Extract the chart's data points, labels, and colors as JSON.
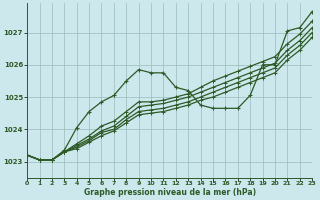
{
  "title": "Graphe pression niveau de la mer (hPa)",
  "bg_color": "#cce8ec",
  "line_color": "#2d5a27",
  "grid_color": "#99bbbb",
  "x_min": 0,
  "x_max": 23,
  "y_min": 1022.5,
  "y_max": 1027.9,
  "y_ticks": [
    1023,
    1024,
    1025,
    1026,
    1027
  ],
  "x_ticks": [
    0,
    1,
    2,
    3,
    4,
    5,
    6,
    7,
    8,
    9,
    10,
    11,
    12,
    13,
    14,
    15,
    16,
    17,
    18,
    19,
    20,
    21,
    22,
    23
  ],
  "series": [
    [
      1023.2,
      1023.05,
      1023.05,
      1023.35,
      1024.05,
      1024.55,
      1024.85,
      1025.05,
      1025.5,
      1025.85,
      1025.75,
      1025.75,
      1025.3,
      1025.2,
      1024.75,
      1024.65,
      1024.65,
      1024.65,
      1025.05,
      1026.0,
      1026.0,
      1027.05,
      1027.15,
      1027.65
    ],
    [
      1023.2,
      1023.05,
      1023.05,
      1023.3,
      1023.55,
      1023.8,
      1024.1,
      1024.25,
      1024.55,
      1024.85,
      1024.85,
      1024.9,
      1025.0,
      1025.1,
      1025.3,
      1025.5,
      1025.65,
      1025.8,
      1025.95,
      1026.1,
      1026.25,
      1026.65,
      1026.95,
      1027.35
    ],
    [
      1023.2,
      1023.05,
      1023.05,
      1023.3,
      1023.5,
      1023.7,
      1023.95,
      1024.1,
      1024.4,
      1024.7,
      1024.75,
      1024.8,
      1024.9,
      1025.0,
      1025.15,
      1025.3,
      1025.45,
      1025.6,
      1025.75,
      1025.9,
      1026.05,
      1026.45,
      1026.75,
      1027.15
    ],
    [
      1023.2,
      1023.05,
      1023.05,
      1023.3,
      1023.45,
      1023.65,
      1023.9,
      1024.0,
      1024.3,
      1024.55,
      1024.6,
      1024.65,
      1024.75,
      1024.85,
      1025.0,
      1025.15,
      1025.3,
      1025.45,
      1025.6,
      1025.75,
      1025.9,
      1026.3,
      1026.6,
      1027.0
    ],
    [
      1023.2,
      1023.05,
      1023.05,
      1023.3,
      1023.4,
      1023.6,
      1023.8,
      1023.95,
      1024.2,
      1024.45,
      1024.5,
      1024.55,
      1024.65,
      1024.75,
      1024.9,
      1025.0,
      1025.15,
      1025.3,
      1025.45,
      1025.6,
      1025.75,
      1026.15,
      1026.45,
      1026.85
    ]
  ]
}
